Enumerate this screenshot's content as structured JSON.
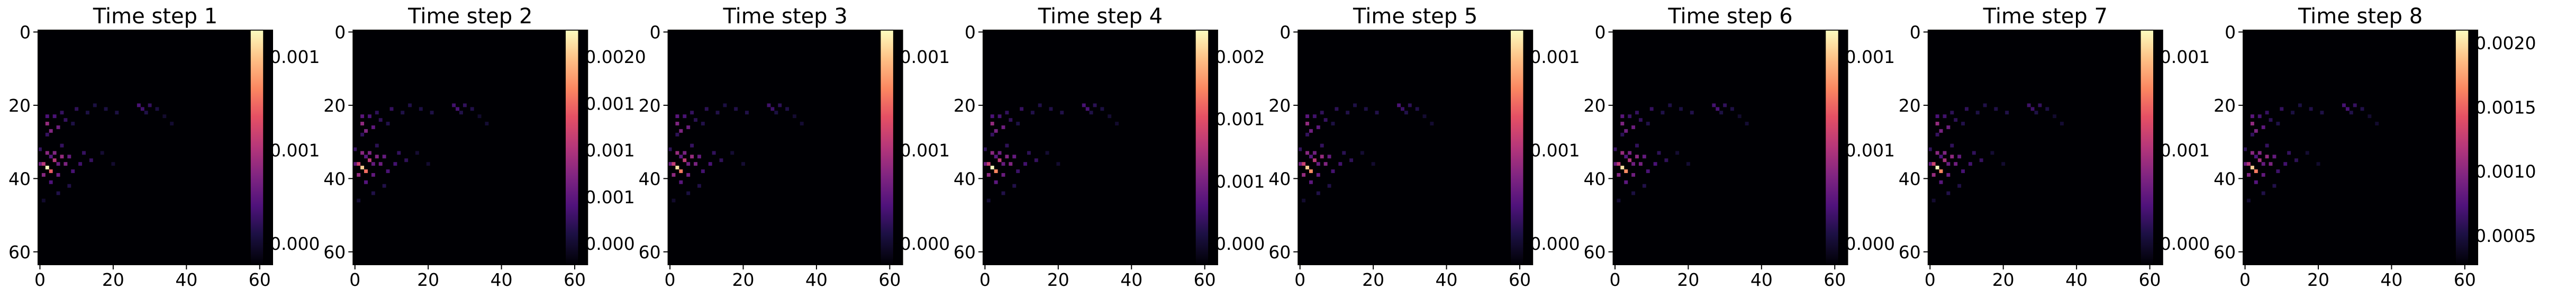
{
  "chart_data": {
    "type": "heatmap",
    "colormap": "magma",
    "panels": [
      {
        "title": "Time step 1",
        "cbar_ticks": [
          "0.001",
          "0.001",
          "0.000"
        ],
        "cbar_truncated": true
      },
      {
        "title": "Time step 2",
        "cbar_ticks": [
          "0.0020",
          "0.001",
          "0.001",
          "0.001",
          "0.000"
        ],
        "cbar_truncated": true
      },
      {
        "title": "Time step 3",
        "cbar_ticks": [
          "0.001",
          "0.001",
          "0.000"
        ],
        "cbar_truncated": true
      },
      {
        "title": "Time step 4",
        "cbar_ticks": [
          "0.002",
          "0.001",
          "0.001",
          "0.000"
        ],
        "cbar_truncated": true
      },
      {
        "title": "Time step 5",
        "cbar_ticks": [
          "0.001",
          "0.001",
          "0.000"
        ],
        "cbar_truncated": true
      },
      {
        "title": "Time step 6",
        "cbar_ticks": [
          "0.001",
          "0.001",
          "0.000"
        ],
        "cbar_truncated": true
      },
      {
        "title": "Time step 7",
        "cbar_ticks": [
          "0.001",
          "0.001",
          "0.000"
        ],
        "cbar_truncated": true
      },
      {
        "title": "Time step 8",
        "cbar_ticks": [
          "0.0020",
          "0.0015",
          "0.0010",
          "0.0005"
        ],
        "cbar_truncated": false
      }
    ],
    "xticks": [
      0,
      20,
      40,
      60
    ],
    "yticks": [
      0,
      20,
      40,
      60
    ],
    "grid_size": 64,
    "vmax": 0.0021,
    "hotspots": [
      {
        "x": 2,
        "y": 37,
        "v": 0.0021
      },
      {
        "x": 3,
        "y": 38,
        "v": 0.0016
      },
      {
        "x": 1,
        "y": 36,
        "v": 0.0012
      },
      {
        "x": 4,
        "y": 35,
        "v": 0.0011
      },
      {
        "x": 2,
        "y": 33,
        "v": 0.0009
      },
      {
        "x": 4,
        "y": 33,
        "v": 0.0008
      },
      {
        "x": 6,
        "y": 34,
        "v": 0.0009
      },
      {
        "x": 7,
        "y": 36,
        "v": 0.0008
      },
      {
        "x": 8,
        "y": 34,
        "v": 0.0007
      },
      {
        "x": 5,
        "y": 39,
        "v": 0.0007
      },
      {
        "x": 3,
        "y": 41,
        "v": 0.0006
      },
      {
        "x": 9,
        "y": 38,
        "v": 0.0005
      },
      {
        "x": 11,
        "y": 36,
        "v": 0.0005
      },
      {
        "x": 12,
        "y": 33,
        "v": 0.0004
      },
      {
        "x": 14,
        "y": 35,
        "v": 0.0004
      },
      {
        "x": 6,
        "y": 31,
        "v": 0.0004
      },
      {
        "x": 2,
        "y": 28,
        "v": 0.0004
      },
      {
        "x": 2,
        "y": 25,
        "v": 0.0009
      },
      {
        "x": 2,
        "y": 23,
        "v": 0.0006
      },
      {
        "x": 3,
        "y": 27,
        "v": 0.0008
      },
      {
        "x": 4,
        "y": 23,
        "v": 0.0005
      },
      {
        "x": 5,
        "y": 26,
        "v": 0.0007
      },
      {
        "x": 6,
        "y": 22,
        "v": 0.0004
      },
      {
        "x": 7,
        "y": 24,
        "v": 0.0004
      },
      {
        "x": 9,
        "y": 25,
        "v": 0.0003
      },
      {
        "x": 10,
        "y": 21,
        "v": 0.0004
      },
      {
        "x": 13,
        "y": 22,
        "v": 0.0003
      },
      {
        "x": 15,
        "y": 20,
        "v": 0.0003
      },
      {
        "x": 18,
        "y": 21,
        "v": 0.0003
      },
      {
        "x": 21,
        "y": 22,
        "v": 0.0003
      },
      {
        "x": 27,
        "y": 20,
        "v": 0.0005
      },
      {
        "x": 28,
        "y": 21,
        "v": 0.0005
      },
      {
        "x": 30,
        "y": 20,
        "v": 0.0004
      },
      {
        "x": 29,
        "y": 22,
        "v": 0.0003
      },
      {
        "x": 32,
        "y": 21,
        "v": 0.0003
      },
      {
        "x": 34,
        "y": 23,
        "v": 0.0002
      },
      {
        "x": 36,
        "y": 25,
        "v": 0.0002
      },
      {
        "x": 5,
        "y": 44,
        "v": 0.0003
      },
      {
        "x": 8,
        "y": 42,
        "v": 0.0003
      },
      {
        "x": 1,
        "y": 46,
        "v": 0.0002
      },
      {
        "x": 17,
        "y": 33,
        "v": 0.0002
      },
      {
        "x": 20,
        "y": 36,
        "v": 0.0002
      },
      {
        "x": 0,
        "y": 32,
        "v": 0.0004
      },
      {
        "x": 1,
        "y": 39,
        "v": 0.0009
      },
      {
        "x": 0,
        "y": 36,
        "v": 0.0007
      },
      {
        "x": 3,
        "y": 34,
        "v": 0.0006
      },
      {
        "x": 5,
        "y": 36,
        "v": 0.0007
      },
      {
        "x": 60,
        "y": 62,
        "v": 0.0001
      }
    ]
  }
}
